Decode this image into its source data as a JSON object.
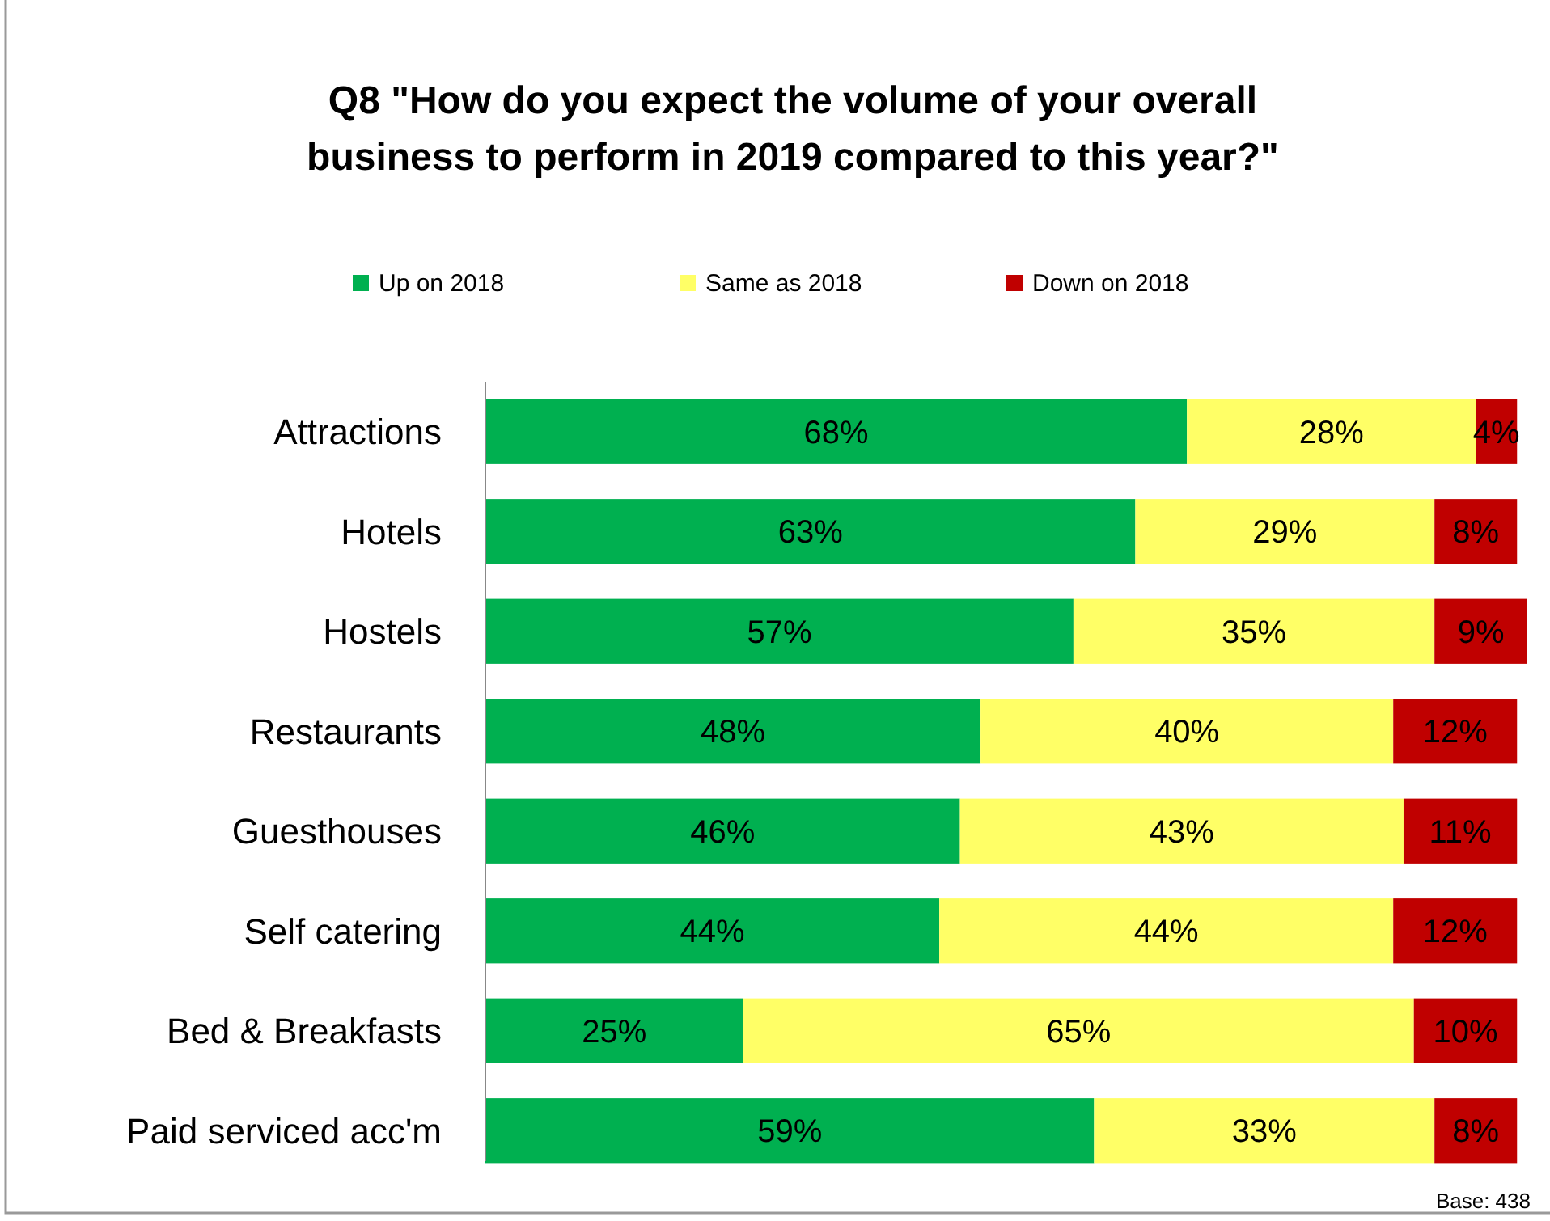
{
  "chart_data": {
    "type": "bar",
    "orientation": "horizontal",
    "stacked": true,
    "title": "Q8 \"How do you expect the volume of your overall business to perform in 2019 compared to this year?\"",
    "categories": [
      "Attractions",
      "Hotels",
      "Hostels",
      "Restaurants",
      "Guesthouses",
      "Self catering",
      "Bed & Breakfasts",
      "Paid serviced acc'm"
    ],
    "series": [
      {
        "name": "Up on 2018",
        "color": "#00b050",
        "values": [
          68,
          63,
          57,
          48,
          46,
          44,
          25,
          59
        ],
        "value_labels": [
          "68%",
          "63%",
          "57%",
          "48%",
          "46%",
          "44%",
          "25%",
          "59%"
        ]
      },
      {
        "name": "Same as 2018",
        "color": "#ffff66",
        "values": [
          28,
          29,
          35,
          40,
          43,
          44,
          65,
          33
        ],
        "value_labels": [
          "28%",
          "29%",
          "35%",
          "40%",
          "43%",
          "44%",
          "65%",
          "33%"
        ]
      },
      {
        "name": "Down on 2018",
        "color": "#c00000",
        "values": [
          4,
          8,
          9,
          12,
          11,
          12,
          10,
          8
        ],
        "value_labels": [
          "4%",
          "8%",
          "9%",
          "12%",
          "11%",
          "12%",
          "10%",
          "8%"
        ]
      }
    ],
    "legend": "top",
    "annotations": [
      "Base: 438"
    ]
  }
}
